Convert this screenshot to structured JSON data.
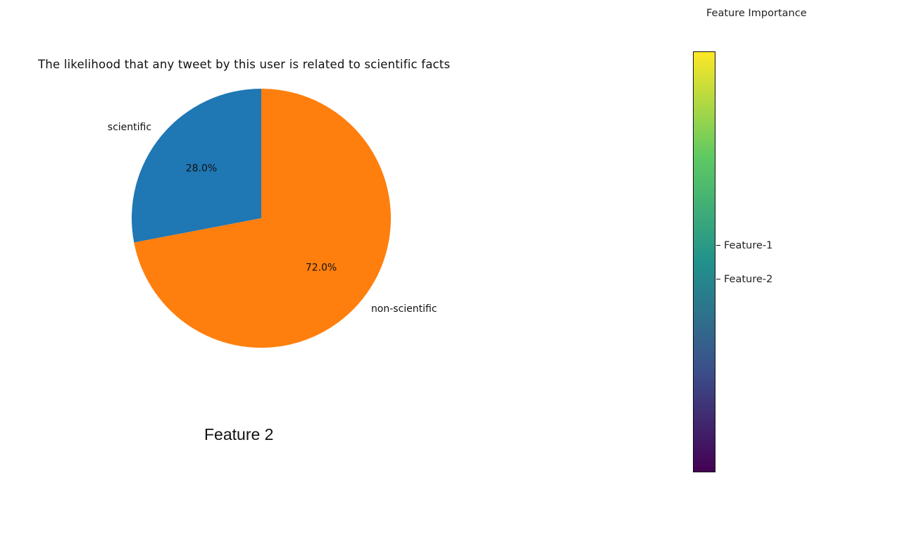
{
  "chart_data": [
    {
      "type": "pie",
      "title": "The likelihood that any tweet by this user is related to scientific facts",
      "labels": [
        "scientific",
        "non-scientific"
      ],
      "values": [
        28.0,
        72.0
      ],
      "autopct": [
        "28.0%",
        "72.0%"
      ],
      "colors": [
        "#1f77b4",
        "#ff7f0e"
      ],
      "start_angle_deg": 90,
      "direction": "counterclockwise"
    },
    {
      "type": "colorbar",
      "title": "Feature Importance",
      "colormap": "viridis",
      "colors": [
        "#440154",
        "#3b528b",
        "#21918c",
        "#5ec962",
        "#fde725"
      ],
      "tick_labels": [
        "Feature-1",
        "Feature-2"
      ],
      "tick_positions": [
        0.54,
        0.46
      ],
      "range": [
        0,
        1
      ]
    }
  ],
  "caption": "Feature 2"
}
